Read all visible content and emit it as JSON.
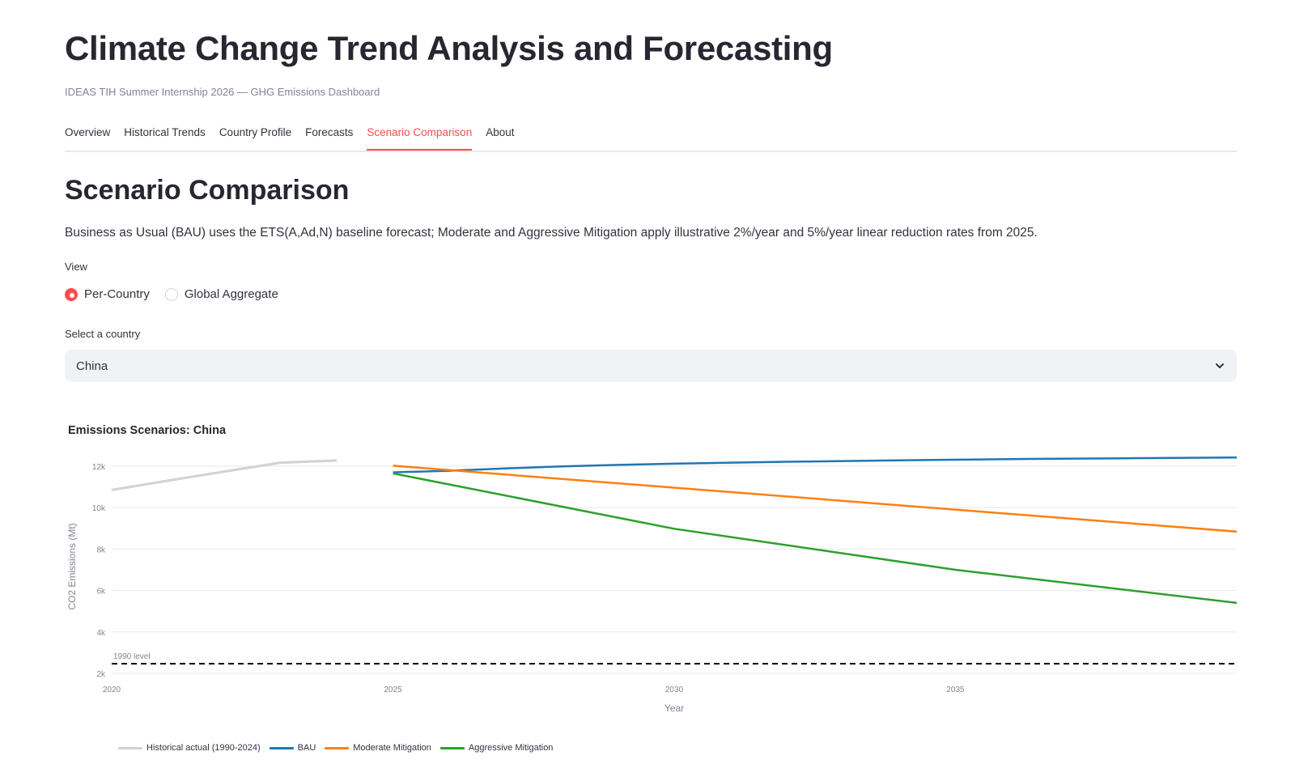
{
  "app": {
    "title": "Climate Change Trend Analysis and Forecasting",
    "subtitle": "IDEAS TIH Summer Internship 2026 — GHG Emissions Dashboard"
  },
  "tabs": [
    {
      "label": "Overview",
      "active": false
    },
    {
      "label": "Historical Trends",
      "active": false
    },
    {
      "label": "Country Profile",
      "active": false
    },
    {
      "label": "Forecasts",
      "active": false
    },
    {
      "label": "Scenario Comparison",
      "active": true
    },
    {
      "label": "About",
      "active": false
    }
  ],
  "section": {
    "heading": "Scenario Comparison",
    "description": "Business as Usual (BAU) uses the ETS(A,Ad,N) baseline forecast; Moderate and Aggressive Mitigation apply illustrative 2%/year and 5%/year linear reduction rates from 2025."
  },
  "view": {
    "label": "View",
    "options": [
      {
        "label": "Per-Country",
        "selected": true
      },
      {
        "label": "Global Aggregate",
        "selected": false
      }
    ]
  },
  "country_select": {
    "label": "Select a country",
    "value": "China"
  },
  "colors": {
    "accent": "#ff4b4b",
    "historical": "#d2d2d2",
    "bau": "#1f77b4",
    "moderate": "#ff7f0e",
    "aggressive": "#2ca02c"
  },
  "chart_data": {
    "type": "line",
    "title": "Emissions Scenarios: China",
    "xlabel": "Year",
    "ylabel": "CO2 Emissions (Mt)",
    "xlim": [
      2020,
      2040
    ],
    "ylim": [
      2000,
      12700
    ],
    "x_ticks": [
      2020,
      2025,
      2030,
      2035
    ],
    "y_ticks": [
      2000,
      4000,
      6000,
      8000,
      10000,
      12000
    ],
    "y_tick_labels": [
      "2k",
      "4k",
      "6k",
      "8k",
      "10k",
      "12k"
    ],
    "grid": true,
    "legend_position": "bottom-left",
    "series": [
      {
        "name": "Historical actual (1990-2024)",
        "color": "#d2d2d2",
        "dash": "solid",
        "x": [
          2020,
          2021,
          2022,
          2023,
          2024
        ],
        "y": [
          10850,
          11300,
          11740,
          12170,
          12270
        ]
      },
      {
        "name": "BAU",
        "color": "#1f77b4",
        "dash": "solid",
        "x": [
          2025,
          2026,
          2027,
          2028,
          2029,
          2030,
          2032,
          2034,
          2036,
          2038,
          2040
        ],
        "y": [
          11700,
          11780,
          11890,
          11990,
          12060,
          12120,
          12210,
          12280,
          12340,
          12380,
          12420
        ]
      },
      {
        "name": "Moderate Mitigation",
        "color": "#ff7f0e",
        "dash": "solid",
        "x": [
          2025,
          2040
        ],
        "y": [
          12020,
          8840
        ]
      },
      {
        "name": "Aggressive Mitigation",
        "color": "#2ca02c",
        "dash": "solid",
        "x": [
          2025,
          2030,
          2035,
          2040
        ],
        "y": [
          11650,
          8980,
          7000,
          5400
        ]
      }
    ],
    "reference_line": {
      "label": "1990 level",
      "y": 2470,
      "color": "#000000"
    }
  }
}
